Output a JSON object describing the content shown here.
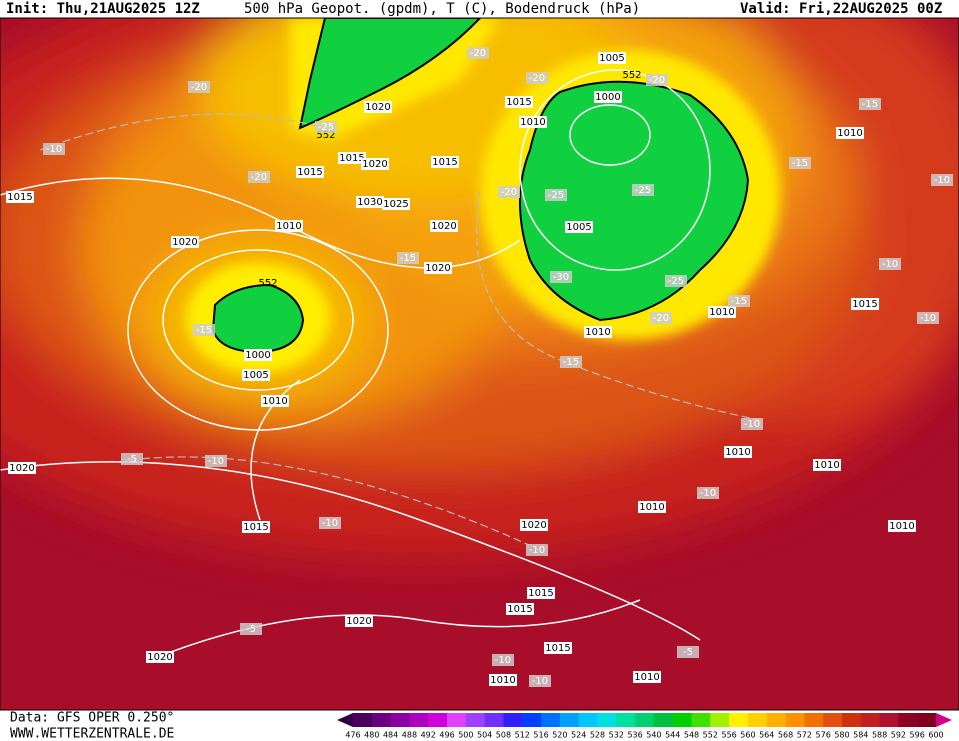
{
  "header": {
    "init": "Init: Thu,21AUG2025 12Z",
    "title": "500 hPa Geopot. (gpdm), T (C), Bodendruck (hPa)",
    "valid": "Valid: Fri,22AUG2025 00Z"
  },
  "footer": {
    "data": "Data: GFS OPER 0.250°",
    "site": "WWW.WETTERZENTRALE.DE"
  },
  "colorbar": {
    "labels": [
      "476",
      "480",
      "484",
      "488",
      "492",
      "496",
      "500",
      "504",
      "508",
      "512",
      "516",
      "520",
      "524",
      "528",
      "532",
      "536",
      "540",
      "544",
      "548",
      "552",
      "556",
      "560",
      "564",
      "568",
      "572",
      "576",
      "580",
      "584",
      "588",
      "592",
      "596",
      "600"
    ]
  },
  "pressure_labels": [
    "1005",
    "1015",
    "1010",
    "1000",
    "1020",
    "1015",
    "1020",
    "1015",
    "1015",
    "1030",
    "1025",
    "1010",
    "1020",
    "1005",
    "1020",
    "1020",
    "1015",
    "1010",
    "1015",
    "1010",
    "1010",
    "552",
    "552",
    "552",
    "1000",
    "1005",
    "1010",
    "1020",
    "1010",
    "1010",
    "1015",
    "1020",
    "1010",
    "1010",
    "1015",
    "1015",
    "1020",
    "1015",
    "1020",
    "1010",
    "1010"
  ],
  "temperature_labels": [
    "-20",
    "-20",
    "-20",
    "-20",
    "-25",
    "-10",
    "-20",
    "-15",
    "-15",
    "-10",
    "-20",
    "-25",
    "-25",
    "-15",
    "-30",
    "-25",
    "-10",
    "-15",
    "-20",
    "-15",
    "-15",
    "-10",
    "-5",
    "-10",
    "-10",
    "-10",
    "-10",
    "-5",
    "-5",
    "-10",
    "-10",
    "-10"
  ]
}
